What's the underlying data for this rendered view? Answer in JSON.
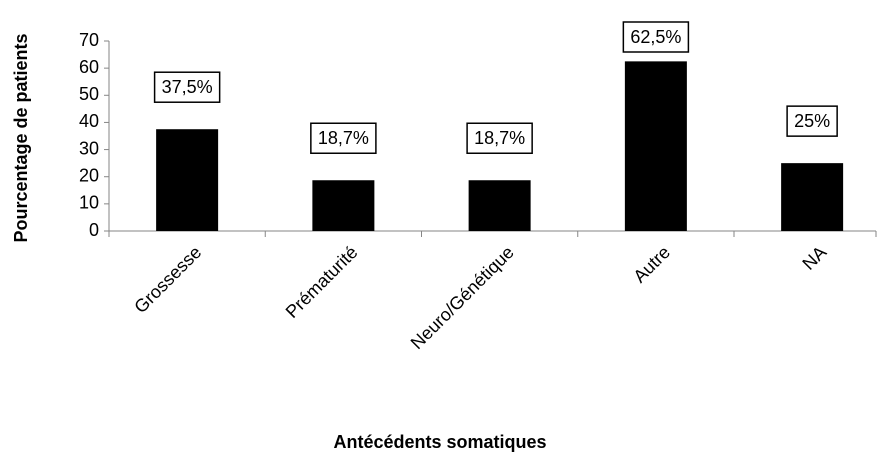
{
  "chart_data": {
    "type": "bar",
    "x_label": "Antécédents somatiques",
    "y_label": "Pourcentage de patients",
    "categories": [
      "Grossesse",
      "Prématurité",
      "Neuro/Génétique",
      "Autre",
      "NA"
    ],
    "values": [
      37.5,
      18.7,
      18.7,
      62.5,
      25
    ],
    "value_labels": [
      "37,5%",
      "18,7%",
      "18,7%",
      "62,5%",
      "25%"
    ],
    "color": "#000000",
    "ylim": [
      0,
      70
    ],
    "yticks": [
      0,
      10,
      20,
      30,
      40,
      50,
      60,
      70
    ],
    "grid": false
  }
}
